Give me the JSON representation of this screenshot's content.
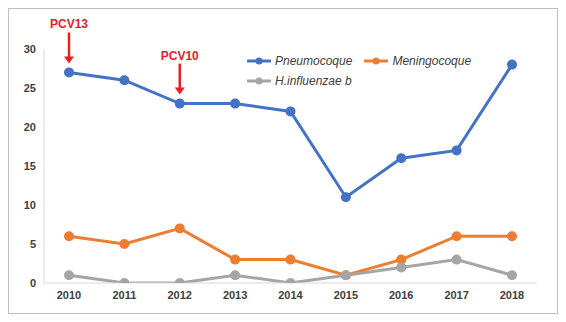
{
  "chart_data": {
    "type": "line",
    "categories": [
      "2010",
      "2011",
      "2012",
      "2013",
      "2014",
      "2015",
      "2016",
      "2017",
      "2018"
    ],
    "series": [
      {
        "name": "Pneumocoque",
        "color": "#4472c4",
        "values": [
          27,
          26,
          23,
          23,
          22,
          11,
          16,
          17,
          28
        ]
      },
      {
        "name": "Meningocoque",
        "color": "#ed7d31",
        "values": [
          6,
          5,
          7,
          3,
          3,
          1,
          3,
          6,
          6
        ]
      },
      {
        "name": "H.influenzae b",
        "color": "#a5a5a5",
        "values": [
          1,
          0,
          0,
          1,
          0,
          1,
          2,
          3,
          1
        ]
      }
    ],
    "ylim": [
      0,
      30
    ],
    "yticks": [
      0,
      5,
      10,
      15,
      20,
      25,
      30
    ],
    "grid": false,
    "legend": "top-right",
    "marker": "circle",
    "annotations": [
      {
        "text": "PCV13",
        "x": "2010",
        "color": "#e8201f"
      },
      {
        "text": "PCV10",
        "x": "2012",
        "color": "#e8201f"
      }
    ]
  }
}
